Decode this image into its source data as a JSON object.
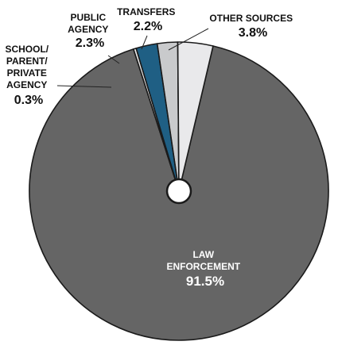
{
  "chart_data": {
    "type": "pie",
    "style": "donut",
    "title": "",
    "slices": [
      {
        "key": "law",
        "label_lines": [
          "LAW",
          "ENFORCEMENT"
        ],
        "value_label": "91.5%",
        "value": 91.5,
        "color": "#656565"
      },
      {
        "key": "school",
        "label_lines": [
          "SCHOOL/",
          "PARENT/",
          "PRIVATE",
          "AGENCY"
        ],
        "value_label": "0.3%",
        "value": 0.3,
        "color": "#e6e6e6"
      },
      {
        "key": "public",
        "label_lines": [
          "PUBLIC",
          "AGENCY"
        ],
        "value_label": "2.3%",
        "value": 2.3,
        "color": "#1f5f84"
      },
      {
        "key": "transfers",
        "label_lines": [
          "TRANSFERS"
        ],
        "value_label": "2.2%",
        "value": 2.2,
        "color": "#c9cacc"
      },
      {
        "key": "other",
        "label_lines": [
          "OTHER SOURCES"
        ],
        "value_label": "3.8%",
        "value": 3.8,
        "color": "#e9e9eb"
      }
    ]
  }
}
